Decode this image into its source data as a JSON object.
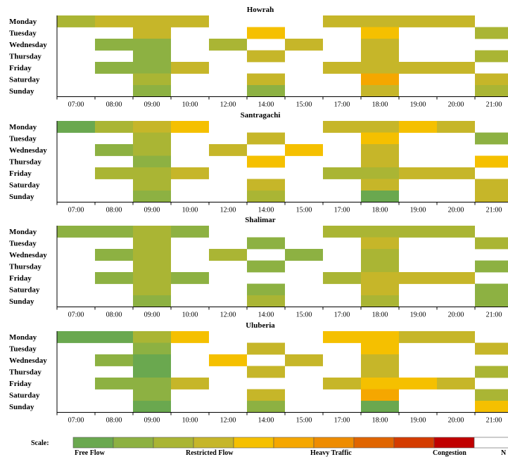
{
  "chart_data": [
    {
      "type": "heatmap",
      "title": "Howrah",
      "rows": [
        "Monday",
        "Tuesday",
        "Wednesday",
        "Thursday",
        "Friday",
        "Saturday",
        "Sunday"
      ],
      "columns": [
        "07:00",
        "08:00",
        "09:00",
        "10:00",
        "12:00",
        "14:00",
        "15:00",
        "17:00",
        "18:00",
        "19:00",
        "20:00",
        "21:00"
      ],
      "values": [
        [
          3,
          4,
          4,
          4,
          null,
          null,
          null,
          4,
          4,
          4,
          4,
          null
        ],
        [
          null,
          null,
          4,
          null,
          null,
          5,
          null,
          null,
          5,
          null,
          null,
          3
        ],
        [
          null,
          2,
          2,
          null,
          3,
          null,
          4,
          null,
          4,
          null,
          null,
          null
        ],
        [
          null,
          null,
          2,
          null,
          null,
          4,
          null,
          null,
          4,
          null,
          null,
          3
        ],
        [
          null,
          2,
          2,
          4,
          null,
          null,
          null,
          4,
          4,
          4,
          4,
          null
        ],
        [
          null,
          null,
          3,
          null,
          null,
          4,
          null,
          null,
          6,
          null,
          null,
          4
        ],
        [
          null,
          null,
          2,
          null,
          null,
          2,
          null,
          null,
          4,
          null,
          null,
          3
        ]
      ]
    },
    {
      "type": "heatmap",
      "title": "Santragachi",
      "rows": [
        "Monday",
        "Tuesday",
        "Wednesday",
        "Thursday",
        "Friday",
        "Saturday",
        "Sunday"
      ],
      "columns": [
        "07:00",
        "08:00",
        "09:00",
        "10:00",
        "12:00",
        "14:00",
        "15:00",
        "17:00",
        "18:00",
        "19:00",
        "20:00",
        "21:00"
      ],
      "values": [
        [
          1,
          3,
          4,
          5,
          null,
          null,
          null,
          4,
          4,
          5,
          4,
          null
        ],
        [
          null,
          null,
          3,
          null,
          null,
          4,
          null,
          null,
          5,
          null,
          null,
          2
        ],
        [
          null,
          2,
          3,
          null,
          4,
          null,
          5,
          null,
          4,
          null,
          null,
          null
        ],
        [
          null,
          null,
          2,
          null,
          null,
          5,
          null,
          null,
          4,
          null,
          null,
          5
        ],
        [
          null,
          3,
          3,
          4,
          null,
          null,
          null,
          3,
          3,
          4,
          4,
          null
        ],
        [
          null,
          null,
          3,
          null,
          null,
          4,
          null,
          null,
          4,
          null,
          null,
          4
        ],
        [
          null,
          null,
          2,
          null,
          null,
          3,
          null,
          null,
          1,
          null,
          null,
          4
        ]
      ]
    },
    {
      "type": "heatmap",
      "title": "Shalimar",
      "rows": [
        "Monday",
        "Tuesday",
        "Wednesday",
        "Thursday",
        "Friday",
        "Saturday",
        "Sunday"
      ],
      "columns": [
        "07:00",
        "08:00",
        "09:00",
        "10:00",
        "12:00",
        "14:00",
        "15:00",
        "17:00",
        "18:00",
        "19:00",
        "20:00",
        "21:00"
      ],
      "values": [
        [
          2,
          2,
          3,
          2,
          null,
          null,
          null,
          3,
          3,
          3,
          3,
          null
        ],
        [
          null,
          null,
          3,
          null,
          null,
          2,
          null,
          null,
          4,
          null,
          null,
          3
        ],
        [
          null,
          2,
          3,
          null,
          3,
          null,
          2,
          null,
          3,
          null,
          null,
          null
        ],
        [
          null,
          null,
          3,
          null,
          null,
          2,
          null,
          null,
          3,
          null,
          null,
          2
        ],
        [
          null,
          2,
          3,
          2,
          null,
          null,
          null,
          3,
          4,
          4,
          4,
          null
        ],
        [
          null,
          null,
          3,
          null,
          null,
          2,
          null,
          null,
          4,
          null,
          null,
          2
        ],
        [
          null,
          null,
          2,
          null,
          null,
          3,
          null,
          null,
          3,
          null,
          null,
          2
        ]
      ]
    },
    {
      "type": "heatmap",
      "title": "Uluberia",
      "rows": [
        "Monday",
        "Tuesday",
        "Wednesday",
        "Thursday",
        "Friday",
        "Saturday",
        "Sunday"
      ],
      "columns": [
        "07:00",
        "08:00",
        "09:00",
        "10:00",
        "12:00",
        "14:00",
        "15:00",
        "17:00",
        "18:00",
        "19:00",
        "20:00",
        "21:00"
      ],
      "values": [
        [
          1,
          1,
          3,
          5,
          null,
          null,
          null,
          5,
          5,
          4,
          4,
          null
        ],
        [
          null,
          null,
          2,
          null,
          null,
          4,
          null,
          null,
          5,
          null,
          null,
          4
        ],
        [
          null,
          2,
          1,
          null,
          5,
          null,
          4,
          null,
          4,
          null,
          null,
          null
        ],
        [
          null,
          null,
          1,
          null,
          null,
          4,
          null,
          null,
          4,
          null,
          null,
          3
        ],
        [
          null,
          2,
          2,
          4,
          null,
          null,
          null,
          4,
          5,
          5,
          4,
          null
        ],
        [
          null,
          null,
          2,
          null,
          null,
          4,
          null,
          null,
          6,
          null,
          null,
          3
        ],
        [
          null,
          null,
          1,
          null,
          null,
          2,
          null,
          null,
          1,
          null,
          null,
          5
        ]
      ]
    }
  ],
  "scale": {
    "label": "Scale:",
    "colors": [
      "#6aa84f",
      "#8db142",
      "#aab534",
      "#c6b629",
      "#f5c000",
      "#f5a700",
      "#ee8c00",
      "#e06500",
      "#d43c00",
      "#c00000",
      "#ffffff"
    ],
    "text_labels": [
      "Free Flow",
      "Restricted Flow",
      "Heavy Traffic",
      "Congestion",
      "N"
    ]
  }
}
